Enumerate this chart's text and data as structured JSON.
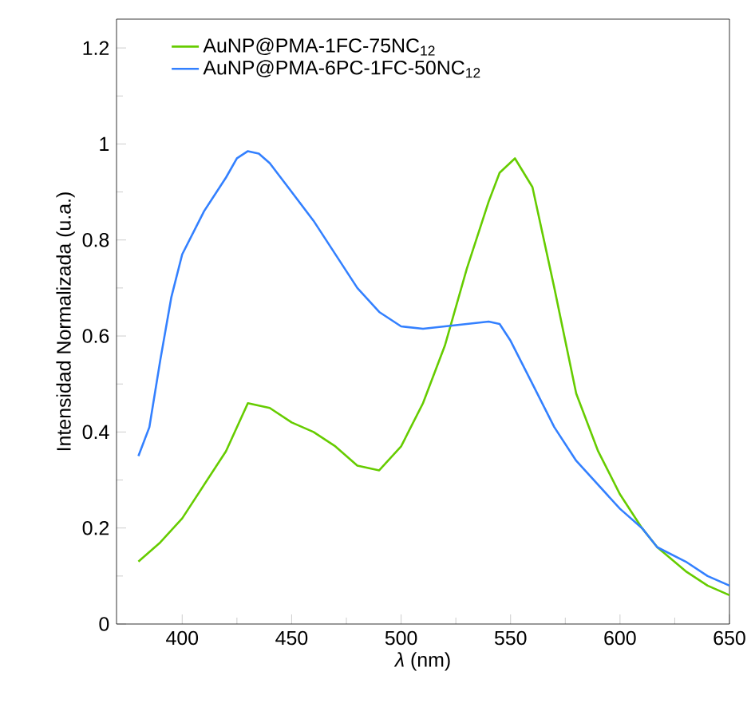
{
  "chart_data": {
    "type": "line",
    "xlabel": "*λ* (nm)",
    "ylabel": "Intensidad Normalizada (u.a.)",
    "xlim": [
      370,
      650
    ],
    "ylim": [
      0,
      1.26
    ],
    "xticks": [
      400,
      450,
      500,
      550,
      600,
      650
    ],
    "yticks": [
      0,
      0.2,
      0.4,
      0.6,
      0.8,
      1,
      1.2
    ],
    "legend": "top left",
    "series": [
      {
        "name": "AuNP@PMA-1FC-75NC$_{12}$",
        "color": "#66cc00",
        "x": [
          380,
          390,
          400,
          410,
          420,
          430,
          440,
          450,
          460,
          470,
          480,
          490,
          500,
          510,
          520,
          530,
          540,
          545,
          552,
          560,
          570,
          580,
          590,
          600,
          610,
          617,
          630,
          640,
          650
        ],
        "values": [
          0.13,
          0.17,
          0.22,
          0.29,
          0.36,
          0.46,
          0.45,
          0.42,
          0.4,
          0.37,
          0.33,
          0.32,
          0.37,
          0.46,
          0.58,
          0.74,
          0.88,
          0.94,
          0.97,
          0.91,
          0.7,
          0.48,
          0.36,
          0.27,
          0.2,
          0.16,
          0.11,
          0.08,
          0.06
        ]
      },
      {
        "name": "AuNP@PMA-6PC-1FC-50NC$_{12}$",
        "color": "#3380ff",
        "x": [
          380,
          385,
          390,
          395,
          400,
          410,
          420,
          425,
          430,
          435,
          440,
          450,
          460,
          470,
          480,
          490,
          500,
          510,
          520,
          530,
          540,
          545,
          550,
          560,
          570,
          580,
          590,
          600,
          610,
          617,
          630,
          640,
          650
        ],
        "values": [
          0.35,
          0.41,
          0.55,
          0.68,
          0.77,
          0.86,
          0.93,
          0.97,
          0.985,
          0.98,
          0.96,
          0.9,
          0.84,
          0.77,
          0.7,
          0.65,
          0.62,
          0.615,
          0.62,
          0.625,
          0.63,
          0.625,
          0.59,
          0.5,
          0.41,
          0.34,
          0.29,
          0.24,
          0.2,
          0.16,
          0.13,
          0.1,
          0.08
        ]
      }
    ]
  }
}
